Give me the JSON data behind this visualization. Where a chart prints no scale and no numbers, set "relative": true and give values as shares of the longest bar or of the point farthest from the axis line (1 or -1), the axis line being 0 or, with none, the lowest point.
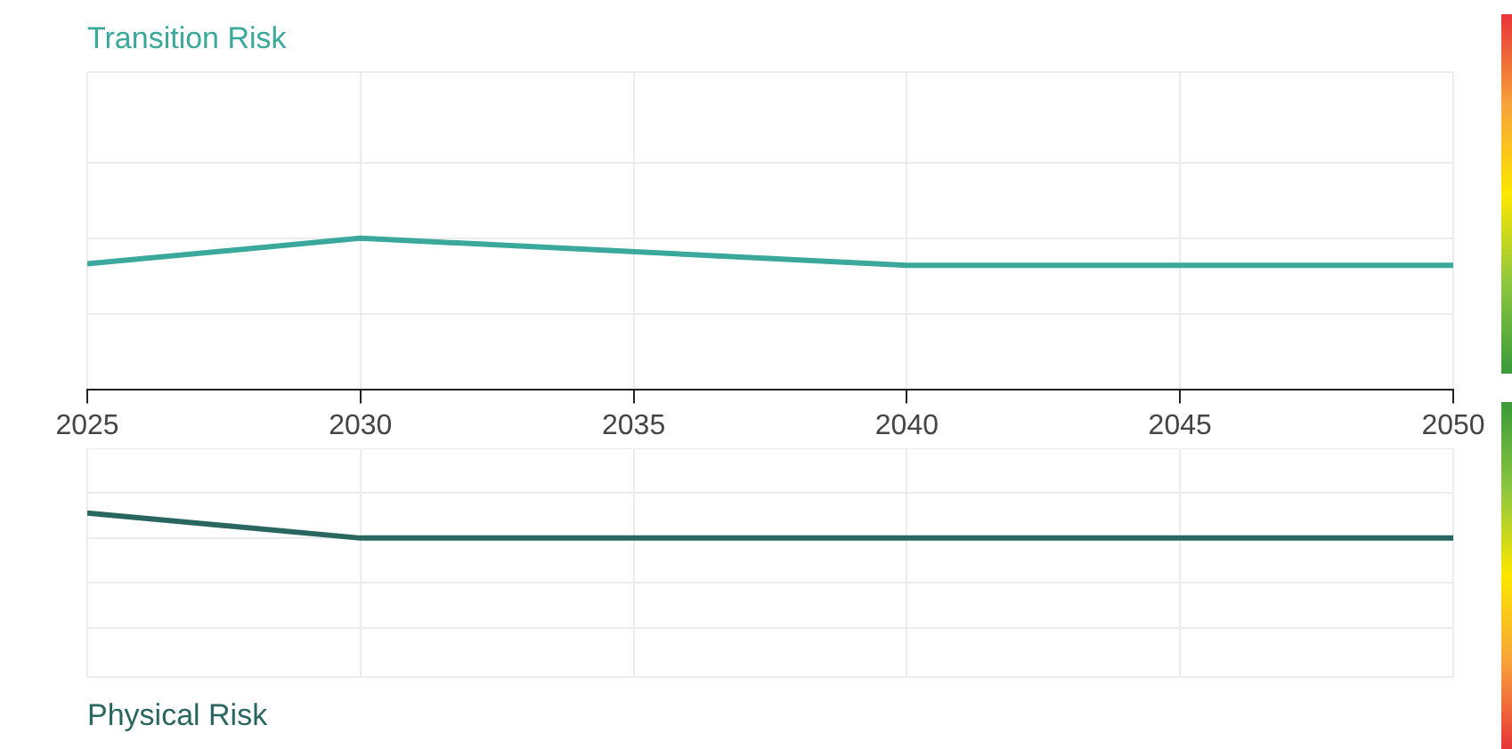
{
  "chart_data": [
    {
      "type": "line",
      "title": "Transition Risk",
      "relative": true,
      "x": [
        2025,
        2030,
        2040,
        2050
      ],
      "xlim": [
        2025,
        2050
      ],
      "xticks": [
        2025,
        2030,
        2035,
        2040,
        2045,
        2050
      ],
      "grid": true,
      "legend": false,
      "marker": "none",
      "series": [
        {
          "color": "#3aa89a",
          "values": [
            0.83,
            1,
            0.82,
            0.82
          ]
        }
      ]
    },
    {
      "type": "line",
      "title": "Physical Risk",
      "relative": true,
      "x": [
        2025,
        2030,
        2050
      ],
      "xlim": [
        2025,
        2050
      ],
      "xticks": [
        2025,
        2030,
        2035,
        2040,
        2045,
        2050
      ],
      "tick_labels": false,
      "grid": true,
      "legend": false,
      "marker": "none",
      "series": [
        {
          "color": "#2a6660",
          "values": [
            -0.72,
            -1,
            -1
          ]
        }
      ]
    }
  ]
}
